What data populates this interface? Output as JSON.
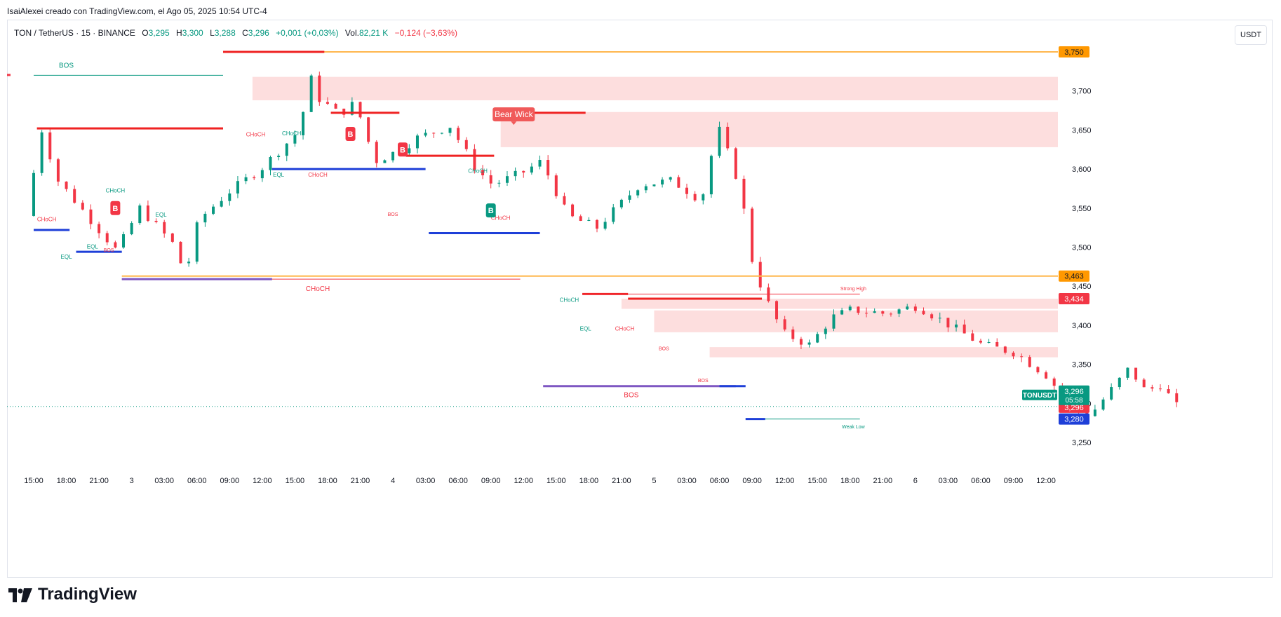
{
  "header": {
    "author_line": "IsaiAlexei creado con TradingView.com, el Ago 05, 2025 10:54 UTC-4"
  },
  "legend": {
    "symbol": "TON / TetherUS · 15 · BINANCE",
    "o_label": "O",
    "o_value": "3,295",
    "h_label": "H",
    "h_value": "3,300",
    "l_label": "L",
    "l_value": "3,288",
    "c_label": "C",
    "c_value": "3,296",
    "change": "+0,001 (+0,03%)",
    "vol_label": "Vol.",
    "vol_value": "82,21 K",
    "vol_change": "−0,124 (−3,63%)"
  },
  "unit_button": "USDT",
  "brand": {
    "name": "TradingView"
  },
  "colors": {
    "up": "#089981",
    "down": "#f23645",
    "zone": "#fddede",
    "orange": "#ffb74d",
    "blue": "#1e3fd8",
    "purple": "#7e57c2",
    "red_line": "#ef2222",
    "teal_line": "#089981"
  },
  "chart_data": {
    "type": "candlestick",
    "symbol": "TONUSDT",
    "ylim": [
      3.21,
      3.81
    ],
    "y_ticks": [
      {
        "v": 3.25,
        "label": "3,250"
      },
      {
        "v": 3.3,
        "label": "3,300"
      },
      {
        "v": 3.35,
        "label": "3,350"
      },
      {
        "v": 3.4,
        "label": "3,400"
      },
      {
        "v": 3.45,
        "label": "3,450"
      },
      {
        "v": 3.5,
        "label": "3,500"
      },
      {
        "v": 3.55,
        "label": "3,550"
      },
      {
        "v": 3.6,
        "label": "3,600"
      },
      {
        "v": 3.65,
        "label": "3,650"
      },
      {
        "v": 3.7,
        "label": "3,700"
      }
    ],
    "x_ticks": [
      "15:00",
      "18:00",
      "21:00",
      "3",
      "03:00",
      "06:00",
      "09:00",
      "12:00",
      "15:00",
      "18:00",
      "21:00",
      "4",
      "03:00",
      "06:00",
      "09:00",
      "12:00",
      "15:00",
      "18:00",
      "21:00",
      "5",
      "03:00",
      "06:00",
      "09:00",
      "12:00",
      "15:00",
      "18:00",
      "21:00",
      "6",
      "03:00",
      "06:00",
      "09:00",
      "12:00"
    ],
    "anchors": [
      {
        "t": 0,
        "p": 3.54
      },
      {
        "t": 0.5,
        "p": 3.65
      },
      {
        "t": 1,
        "p": 3.585
      },
      {
        "t": 2,
        "p": 3.535
      },
      {
        "t": 2.8,
        "p": 3.495
      },
      {
        "t": 3.5,
        "p": 3.55
      },
      {
        "t": 4.5,
        "p": 3.505
      },
      {
        "t": 4.9,
        "p": 3.465
      },
      {
        "t": 5.3,
        "p": 3.535
      },
      {
        "t": 6.2,
        "p": 3.57
      },
      {
        "t": 7.2,
        "p": 3.6
      },
      {
        "t": 8.4,
        "p": 3.65
      },
      {
        "t": 8.7,
        "p": 3.72
      },
      {
        "t": 9.0,
        "p": 3.69
      },
      {
        "t": 9.6,
        "p": 3.67
      },
      {
        "t": 10.1,
        "p": 3.685
      },
      {
        "t": 10.7,
        "p": 3.61
      },
      {
        "t": 11.5,
        "p": 3.625
      },
      {
        "t": 12.0,
        "p": 3.64
      },
      {
        "t": 13.0,
        "p": 3.655
      },
      {
        "t": 13.8,
        "p": 3.6
      },
      {
        "t": 14.3,
        "p": 3.58
      },
      {
        "t": 15.2,
        "p": 3.595
      },
      {
        "t": 15.8,
        "p": 3.61
      },
      {
        "t": 16.6,
        "p": 3.54
      },
      {
        "t": 17.5,
        "p": 3.525
      },
      {
        "t": 18.8,
        "p": 3.58
      },
      {
        "t": 19.8,
        "p": 3.585
      },
      {
        "t": 20.7,
        "p": 3.56
      },
      {
        "t": 21.2,
        "p": 3.655
      },
      {
        "t": 21.6,
        "p": 3.61
      },
      {
        "t": 21.9,
        "p": 3.575
      },
      {
        "t": 22.2,
        "p": 3.49
      },
      {
        "t": 22.6,
        "p": 3.44
      },
      {
        "t": 23.2,
        "p": 3.39
      },
      {
        "t": 24.0,
        "p": 3.375
      },
      {
        "t": 24.7,
        "p": 3.41
      },
      {
        "t": 25.3,
        "p": 3.42
      },
      {
        "t": 26.3,
        "p": 3.415
      },
      {
        "t": 27.3,
        "p": 3.425
      },
      {
        "t": 28.3,
        "p": 3.4
      },
      {
        "t": 29.3,
        "p": 3.375
      },
      {
        "t": 30.3,
        "p": 3.365
      },
      {
        "t": 31.3,
        "p": 3.335
      },
      {
        "t": 32.0,
        "p": 3.295
      },
      {
        "t": 32.6,
        "p": 3.285
      },
      {
        "t": 33.3,
        "p": 3.32
      },
      {
        "t": 33.8,
        "p": 3.345
      },
      {
        "t": 34.3,
        "p": 3.315
      },
      {
        "t": 34.8,
        "p": 3.325
      },
      {
        "t": 35.2,
        "p": 3.296
      }
    ],
    "levels": [
      {
        "name": "strong-high-line",
        "from": 5.8,
        "to": 40.5,
        "p": 3.75,
        "color": "orange",
        "w": 2
      },
      {
        "name": "high-red-line",
        "from": 5.8,
        "to": 8.9,
        "p": 3.75,
        "color": "red_line",
        "w": 3
      },
      {
        "name": "bos-line-top",
        "from": 0,
        "to": 5.8,
        "p": 3.72,
        "color": "teal_line",
        "w": 1
      },
      {
        "name": "resistance-left",
        "from": 0.1,
        "to": 5.8,
        "p": 3.652,
        "color": "red_line",
        "w": 3
      },
      {
        "name": "eql-blue-line",
        "from": 7.3,
        "to": 12.0,
        "p": 3.6,
        "color": "blue",
        "w": 3
      },
      {
        "name": "red-line-mid1",
        "from": 9.1,
        "to": 11.2,
        "p": 3.672,
        "color": "red_line",
        "w": 3
      },
      {
        "name": "red-line-mid2",
        "from": 11.4,
        "to": 14.1,
        "p": 3.617,
        "color": "red_line",
        "w": 3
      },
      {
        "name": "red-line-bear",
        "from": 14.3,
        "to": 16.9,
        "p": 3.672,
        "color": "red_line",
        "w": 3
      },
      {
        "name": "blue-line-mid",
        "from": 12.1,
        "to": 15.5,
        "p": 3.518,
        "color": "blue",
        "w": 3
      },
      {
        "name": "blue-line-left1",
        "from": 0,
        "to": 1.1,
        "p": 3.522,
        "color": "blue",
        "w": 3
      },
      {
        "name": "blue-line-left2",
        "from": 1.3,
        "to": 2.7,
        "p": 3.494,
        "color": "blue",
        "w": 3
      },
      {
        "name": "orange-line-463",
        "from": 2.7,
        "to": 40.5,
        "p": 3.463,
        "color": "orange",
        "w": 2
      },
      {
        "name": "choch-red-line",
        "from": 2.7,
        "to": 14.9,
        "p": 3.459,
        "color": "down",
        "w": 1
      },
      {
        "name": "purple-line-left",
        "from": 2.7,
        "to": 7.3,
        "p": 3.459,
        "color": "purple",
        "w": 3
      },
      {
        "name": "red-line-434a",
        "from": 16.8,
        "to": 18.2,
        "p": 3.44,
        "color": "red_line",
        "w": 3
      },
      {
        "name": "strong-high-thin",
        "from": 16.8,
        "to": 25.3,
        "p": 3.44,
        "color": "down",
        "w": 1
      },
      {
        "name": "red-line-434b",
        "from": 18.2,
        "to": 22.3,
        "p": 3.434,
        "color": "red_line",
        "w": 3
      },
      {
        "name": "purple-line-bos",
        "from": 15.6,
        "to": 21.5,
        "p": 3.322,
        "color": "purple",
        "w": 3
      },
      {
        "name": "blue-line-bos",
        "from": 21.0,
        "to": 21.8,
        "p": 3.322,
        "color": "blue",
        "w": 3
      },
      {
        "name": "weak-low-line",
        "from": 21.8,
        "to": 25.3,
        "p": 3.28,
        "color": "teal_line",
        "w": 1
      },
      {
        "name": "blue-line-280",
        "from": 21.8,
        "to": 22.4,
        "p": 3.28,
        "color": "blue",
        "w": 3
      }
    ],
    "zones": [
      {
        "name": "supply-zone-1",
        "from": 6.7,
        "to": 40.5,
        "p1": 3.718,
        "p2": 3.688
      },
      {
        "name": "supply-zone-2",
        "from": 14.3,
        "to": 40.5,
        "p1": 3.673,
        "p2": 3.628
      },
      {
        "name": "supply-zone-3",
        "from": 18.0,
        "to": 40.5,
        "p1": 3.434,
        "p2": 3.421
      },
      {
        "name": "supply-zone-4",
        "from": 19.0,
        "to": 40.5,
        "p1": 3.419,
        "p2": 3.391
      },
      {
        "name": "supply-zone-5",
        "from": 20.7,
        "to": 40.5,
        "p1": 3.372,
        "p2": 3.359
      }
    ],
    "annotations": [
      {
        "name": "label-bos-top",
        "t": 1.0,
        "p": 3.73,
        "text": "BOS",
        "color": "teal_line",
        "size": 10
      },
      {
        "name": "label-choch-1",
        "t": 0.4,
        "p": 3.533,
        "text": "CHoCH",
        "color": "down",
        "size": 8
      },
      {
        "name": "label-eql-1",
        "t": 1.0,
        "p": 3.485,
        "text": "EQL",
        "color": "teal_line",
        "size": 8
      },
      {
        "name": "label-eql-2",
        "t": 1.8,
        "p": 3.498,
        "text": "EQL",
        "color": "teal_line",
        "size": 8
      },
      {
        "name": "label-bos-small-1",
        "t": 2.3,
        "p": 3.494,
        "text": "BOS",
        "color": "down",
        "size": 7
      },
      {
        "name": "label-choch-2",
        "t": 2.5,
        "p": 3.57,
        "text": "CHoCH",
        "color": "teal_line",
        "size": 8
      },
      {
        "name": "label-eql-3",
        "t": 3.9,
        "p": 3.539,
        "text": "EQL",
        "color": "teal_line",
        "size": 8
      },
      {
        "name": "label-choch-3",
        "t": 6.8,
        "p": 3.642,
        "text": "CHoCH",
        "color": "down",
        "size": 8
      },
      {
        "name": "label-choch-4",
        "t": 7.9,
        "p": 3.643,
        "text": "CHoCH",
        "color": "teal_line",
        "size": 8
      },
      {
        "name": "label-eql-4",
        "t": 7.5,
        "p": 3.59,
        "text": "EQL",
        "color": "teal_line",
        "size": 8
      },
      {
        "name": "label-choch-5",
        "t": 8.7,
        "p": 3.59,
        "text": "CHoCH",
        "color": "down",
        "size": 8
      },
      {
        "name": "label-bos-small-2",
        "t": 11.0,
        "p": 3.54,
        "text": "BOS",
        "color": "down",
        "size": 7
      },
      {
        "name": "label-choch-6",
        "t": 13.6,
        "p": 3.595,
        "text": "CHoCH",
        "color": "teal_line",
        "size": 8
      },
      {
        "name": "label-choch-7",
        "t": 14.3,
        "p": 3.535,
        "text": "CHoCH",
        "color": "down",
        "size": 8
      },
      {
        "name": "label-choch-main",
        "t": 8.7,
        "p": 3.444,
        "text": "CHoCH",
        "color": "down",
        "size": 10
      },
      {
        "name": "label-choch-8",
        "t": 16.4,
        "p": 3.43,
        "text": "CHoCH",
        "color": "teal_line",
        "size": 8
      },
      {
        "name": "label-eql-5",
        "t": 16.9,
        "p": 3.393,
        "text": "EQL",
        "color": "teal_line",
        "size": 8
      },
      {
        "name": "label-choch-9",
        "t": 18.1,
        "p": 3.393,
        "text": "CHoCH",
        "color": "down",
        "size": 8
      },
      {
        "name": "label-bos-small-3",
        "t": 19.3,
        "p": 3.368,
        "text": "BOS",
        "color": "down",
        "size": 7
      },
      {
        "name": "label-bos-small-4",
        "t": 20.5,
        "p": 3.327,
        "text": "BOS",
        "color": "down",
        "size": 7
      },
      {
        "name": "label-bos-main",
        "t": 18.3,
        "p": 3.308,
        "text": "BOS",
        "color": "down",
        "size": 10
      },
      {
        "name": "label-strong-high",
        "t": 25.1,
        "p": 3.445,
        "text": "Strong High",
        "color": "down",
        "size": 7
      },
      {
        "name": "label-weak-low",
        "t": 25.1,
        "p": 3.268,
        "text": "Weak Low",
        "color": "teal_line",
        "size": 7
      }
    ],
    "badges": [
      {
        "name": "signal-b-1",
        "t": 2.5,
        "p": 3.55,
        "text": "B",
        "color": "down"
      },
      {
        "name": "signal-b-2",
        "t": 9.7,
        "p": 3.645,
        "text": "B",
        "color": "down"
      },
      {
        "name": "signal-b-3",
        "t": 11.3,
        "p": 3.625,
        "text": "B",
        "color": "down"
      },
      {
        "name": "signal-b-4",
        "t": 14.0,
        "p": 3.547,
        "text": "B",
        "color": "up"
      }
    ],
    "bear_wick": {
      "t": 14.7,
      "p": 3.67,
      "text": "Bear Wick"
    },
    "price_labels": [
      {
        "name": "price-tag-3750",
        "p": 3.75,
        "text": "3,750",
        "bg": "#ff9800",
        "fg": "#131722"
      },
      {
        "name": "price-tag-3463",
        "p": 3.463,
        "text": "3,463",
        "bg": "#ff9800",
        "fg": "#131722"
      },
      {
        "name": "price-tag-3434",
        "p": 3.434,
        "text": "3,434",
        "bg": "#f23645",
        "fg": "#ffffff"
      },
      {
        "name": "price-tag-3280",
        "p": 3.28,
        "text": "3,280",
        "bg": "#1e3fd8",
        "fg": "#ffffff"
      },
      {
        "name": "price-tag-3296-red",
        "p": 3.295,
        "text": "3,296",
        "bg": "#f23645",
        "fg": "#ffffff"
      }
    ],
    "last_price": {
      "p": 3.296,
      "text": "3,296",
      "countdown": "05:58",
      "symbol_tag": "TONUSDT"
    }
  }
}
